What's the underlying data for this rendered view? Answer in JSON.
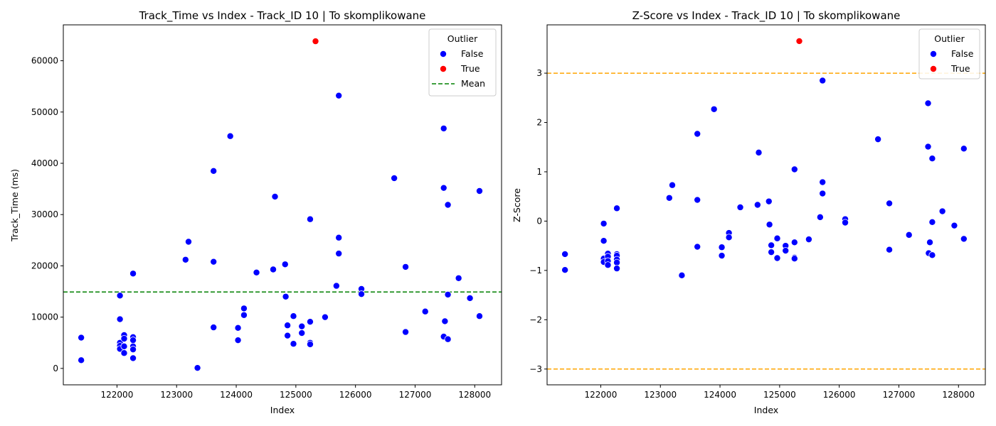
{
  "chart_data": [
    {
      "type": "scatter",
      "title": "Track_Time vs Index - Track_ID 10 | To skomplikowane",
      "xlabel": "Index",
      "ylabel": "Track_Time (ms)",
      "xlim": [
        121100,
        128450
      ],
      "ylim": [
        -3200,
        67000
      ],
      "xticks": [
        122000,
        123000,
        124000,
        125000,
        126000,
        127000,
        128000
      ],
      "yticks": [
        0,
        10000,
        20000,
        30000,
        40000,
        50000,
        60000
      ],
      "grid": false,
      "legend": {
        "title": "Outlier",
        "placement": "top-right",
        "entries": [
          {
            "label": "False",
            "kind": "marker",
            "color": "#0000ff"
          },
          {
            "label": "True",
            "kind": "marker",
            "color": "#ff0000"
          },
          {
            "label": "Mean",
            "kind": "dashed-line",
            "color": "#008000"
          }
        ]
      },
      "reference_lines": [
        {
          "name": "Mean",
          "y": 14900,
          "color": "#008000",
          "style": "dashed"
        }
      ],
      "series": [
        {
          "name": "False",
          "color": "#0000ff",
          "points": [
            [
              121400,
              1600
            ],
            [
              121400,
              6000
            ],
            [
              122050,
              14200
            ],
            [
              122050,
              9600
            ],
            [
              122050,
              5000
            ],
            [
              122050,
              4400
            ],
            [
              122050,
              3800
            ],
            [
              122120,
              6500
            ],
            [
              122120,
              5800
            ],
            [
              122120,
              4300
            ],
            [
              122120,
              3000
            ],
            [
              122270,
              18500
            ],
            [
              122270,
              6100
            ],
            [
              122270,
              5500
            ],
            [
              122270,
              4300
            ],
            [
              122270,
              3700
            ],
            [
              122270,
              2000
            ],
            [
              123150,
              21200
            ],
            [
              123200,
              24700
            ],
            [
              123350,
              100
            ],
            [
              123620,
              38500
            ],
            [
              123620,
              20800
            ],
            [
              123620,
              8000
            ],
            [
              123900,
              45300
            ],
            [
              124030,
              7900
            ],
            [
              124030,
              5500
            ],
            [
              124130,
              11700
            ],
            [
              124130,
              10400
            ],
            [
              124340,
              18700
            ],
            [
              124620,
              19300
            ],
            [
              124650,
              33500
            ],
            [
              124820,
              20300
            ],
            [
              124830,
              14000
            ],
            [
              124860,
              8400
            ],
            [
              124860,
              6400
            ],
            [
              124960,
              10200
            ],
            [
              124960,
              4800
            ],
            [
              125100,
              8200
            ],
            [
              125100,
              6900
            ],
            [
              125240,
              29100
            ],
            [
              125240,
              9100
            ],
            [
              125240,
              5000
            ],
            [
              125240,
              4700
            ],
            [
              125490,
              10000
            ],
            [
              125680,
              16100
            ],
            [
              125720,
              53200
            ],
            [
              125720,
              25500
            ],
            [
              125720,
              22400
            ],
            [
              126100,
              15500
            ],
            [
              126100,
              14500
            ],
            [
              126650,
              37100
            ],
            [
              126840,
              19800
            ],
            [
              126840,
              7100
            ],
            [
              127170,
              11100
            ],
            [
              127480,
              46800
            ],
            [
              127480,
              35200
            ],
            [
              127480,
              6200
            ],
            [
              127500,
              9200
            ],
            [
              127550,
              31900
            ],
            [
              127550,
              14400
            ],
            [
              127550,
              5700
            ],
            [
              127730,
              17600
            ],
            [
              127920,
              13700
            ],
            [
              128080,
              34600
            ],
            [
              128080,
              10200
            ]
          ]
        },
        {
          "name": "True",
          "color": "#ff0000",
          "points": [
            [
              125330,
              63800
            ]
          ]
        }
      ]
    },
    {
      "type": "scatter",
      "title": "Z-Score vs Index - Track_ID 10 | To skomplikowane",
      "xlabel": "Index",
      "ylabel": "Z-Score",
      "xlim": [
        121100,
        128450
      ],
      "ylim": [
        -3.32,
        3.98
      ],
      "xticks": [
        122000,
        123000,
        124000,
        125000,
        126000,
        127000,
        128000
      ],
      "yticks": [
        -3,
        -2,
        -1,
        0,
        1,
        2,
        3
      ],
      "grid": false,
      "legend": {
        "title": "Outlier",
        "placement": "top-right",
        "entries": [
          {
            "label": "False",
            "kind": "marker",
            "color": "#0000ff"
          },
          {
            "label": "True",
            "kind": "marker",
            "color": "#ff0000"
          }
        ]
      },
      "reference_lines": [
        {
          "name": "",
          "y": 3,
          "color": "#ffa500",
          "style": "dashed"
        },
        {
          "name": "",
          "y": -3,
          "color": "#ffa500",
          "style": "dashed"
        }
      ],
      "series": [
        {
          "name": "False",
          "color": "#0000ff",
          "points": [
            [
              121400,
              -0.67
            ],
            [
              121400,
              -0.99
            ],
            [
              122050,
              -0.05
            ],
            [
              122050,
              -0.4
            ],
            [
              122050,
              -0.76
            ],
            [
              122050,
              -0.83
            ],
            [
              122120,
              -0.66
            ],
            [
              122120,
              -0.72
            ],
            [
              122120,
              -0.81
            ],
            [
              122120,
              -0.89
            ],
            [
              122270,
              0.26
            ],
            [
              122270,
              -0.67
            ],
            [
              122270,
              -0.7
            ],
            [
              122270,
              -0.78
            ],
            [
              122270,
              -0.84
            ],
            [
              122270,
              -0.96
            ],
            [
              123150,
              0.47
            ],
            [
              123200,
              0.73
            ],
            [
              123360,
              -1.1
            ],
            [
              123620,
              1.77
            ],
            [
              123620,
              0.43
            ],
            [
              123620,
              -0.52
            ],
            [
              123900,
              2.27
            ],
            [
              124030,
              -0.53
            ],
            [
              124030,
              -0.7
            ],
            [
              124150,
              -0.24
            ],
            [
              124150,
              -0.33
            ],
            [
              124340,
              0.28
            ],
            [
              124630,
              0.33
            ],
            [
              124650,
              1.39
            ],
            [
              124820,
              0.4
            ],
            [
              124830,
              -0.07
            ],
            [
              124860,
              -0.49
            ],
            [
              124860,
              -0.63
            ],
            [
              124960,
              -0.35
            ],
            [
              124960,
              -0.75
            ],
            [
              125100,
              -0.5
            ],
            [
              125100,
              -0.6
            ],
            [
              125250,
              1.05
            ],
            [
              125250,
              -0.43
            ],
            [
              125250,
              -0.74
            ],
            [
              125250,
              -0.76
            ],
            [
              125490,
              -0.37
            ],
            [
              125680,
              0.08
            ],
            [
              125720,
              2.85
            ],
            [
              125720,
              0.79
            ],
            [
              125720,
              0.56
            ],
            [
              126100,
              0.04
            ],
            [
              126100,
              -0.03
            ],
            [
              126650,
              1.66
            ],
            [
              126840,
              0.36
            ],
            [
              126840,
              -0.58
            ],
            [
              127170,
              -0.28
            ],
            [
              127490,
              2.39
            ],
            [
              127490,
              1.51
            ],
            [
              127500,
              -0.65
            ],
            [
              127520,
              -0.43
            ],
            [
              127560,
              1.27
            ],
            [
              127560,
              -0.02
            ],
            [
              127560,
              -0.69
            ],
            [
              127730,
              0.2
            ],
            [
              127930,
              -0.09
            ],
            [
              128090,
              1.47
            ],
            [
              128090,
              -0.36
            ]
          ]
        },
        {
          "name": "True",
          "color": "#ff0000",
          "points": [
            [
              125330,
              3.65
            ]
          ]
        }
      ]
    }
  ]
}
